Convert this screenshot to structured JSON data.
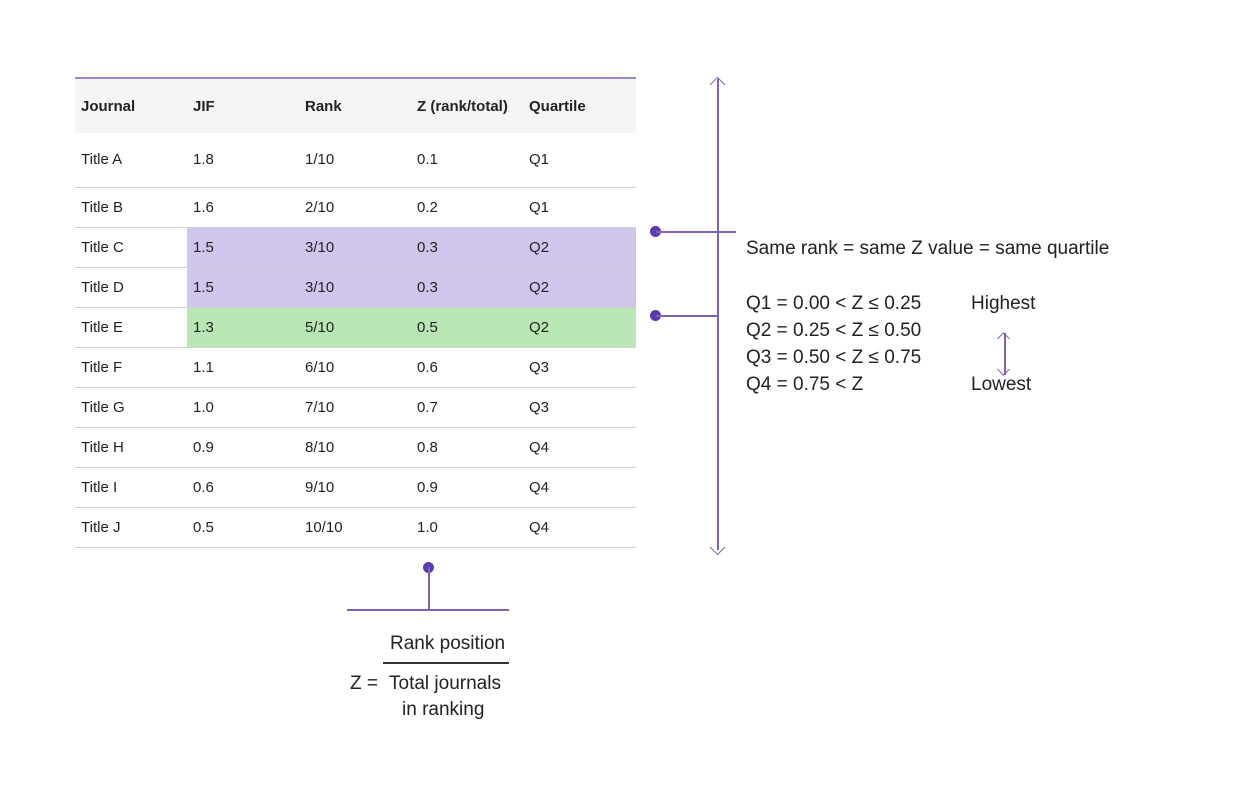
{
  "table": {
    "headers": [
      "Journal",
      "JIF",
      "Rank",
      "Z (rank/total)",
      "Quartile"
    ],
    "rows": [
      [
        "Title A",
        "1.8",
        "1/10",
        "0.1",
        "Q1"
      ],
      [
        "Title B",
        "1.6",
        "2/10",
        "0.2",
        "Q1"
      ],
      [
        "Title C",
        "1.5",
        "3/10",
        "0.3",
        "Q2"
      ],
      [
        "Title D",
        "1.5",
        "3/10",
        "0.3",
        "Q2"
      ],
      [
        "Title E",
        "1.3",
        "5/10",
        "0.5",
        "Q2"
      ],
      [
        "Title F",
        "1.1",
        "6/10",
        "0.6",
        "Q3"
      ],
      [
        "Title G",
        "1.0",
        "7/10",
        "0.7",
        "Q3"
      ],
      [
        "Title H",
        "0.9",
        "8/10",
        "0.8",
        "Q4"
      ],
      [
        "Title I",
        "0.6",
        "9/10",
        "0.9",
        "Q4"
      ],
      [
        "Title J",
        "0.5",
        "10/10",
        "1.0",
        "Q4"
      ]
    ],
    "highlight_color_tied": "#d0c6ec",
    "highlight_color_next": "#b8e6b4"
  },
  "annotation": {
    "same_rank": "Same rank = same Z value = same quartile",
    "quartiles": [
      "Q1 = 0.00 < Z ≤ 0.25",
      "Q2 = 0.25 < Z ≤ 0.50",
      "Q3 = 0.50 < Z ≤ 0.75",
      "Q4 = 0.75 < Z"
    ],
    "highest": "Highest",
    "lowest": "Lowest"
  },
  "formula": {
    "lhs": "Z =",
    "numerator": "Rank position",
    "denominator_line1": "Total journals",
    "denominator_line2": "in ranking"
  },
  "accent_color": "#7f62b6"
}
